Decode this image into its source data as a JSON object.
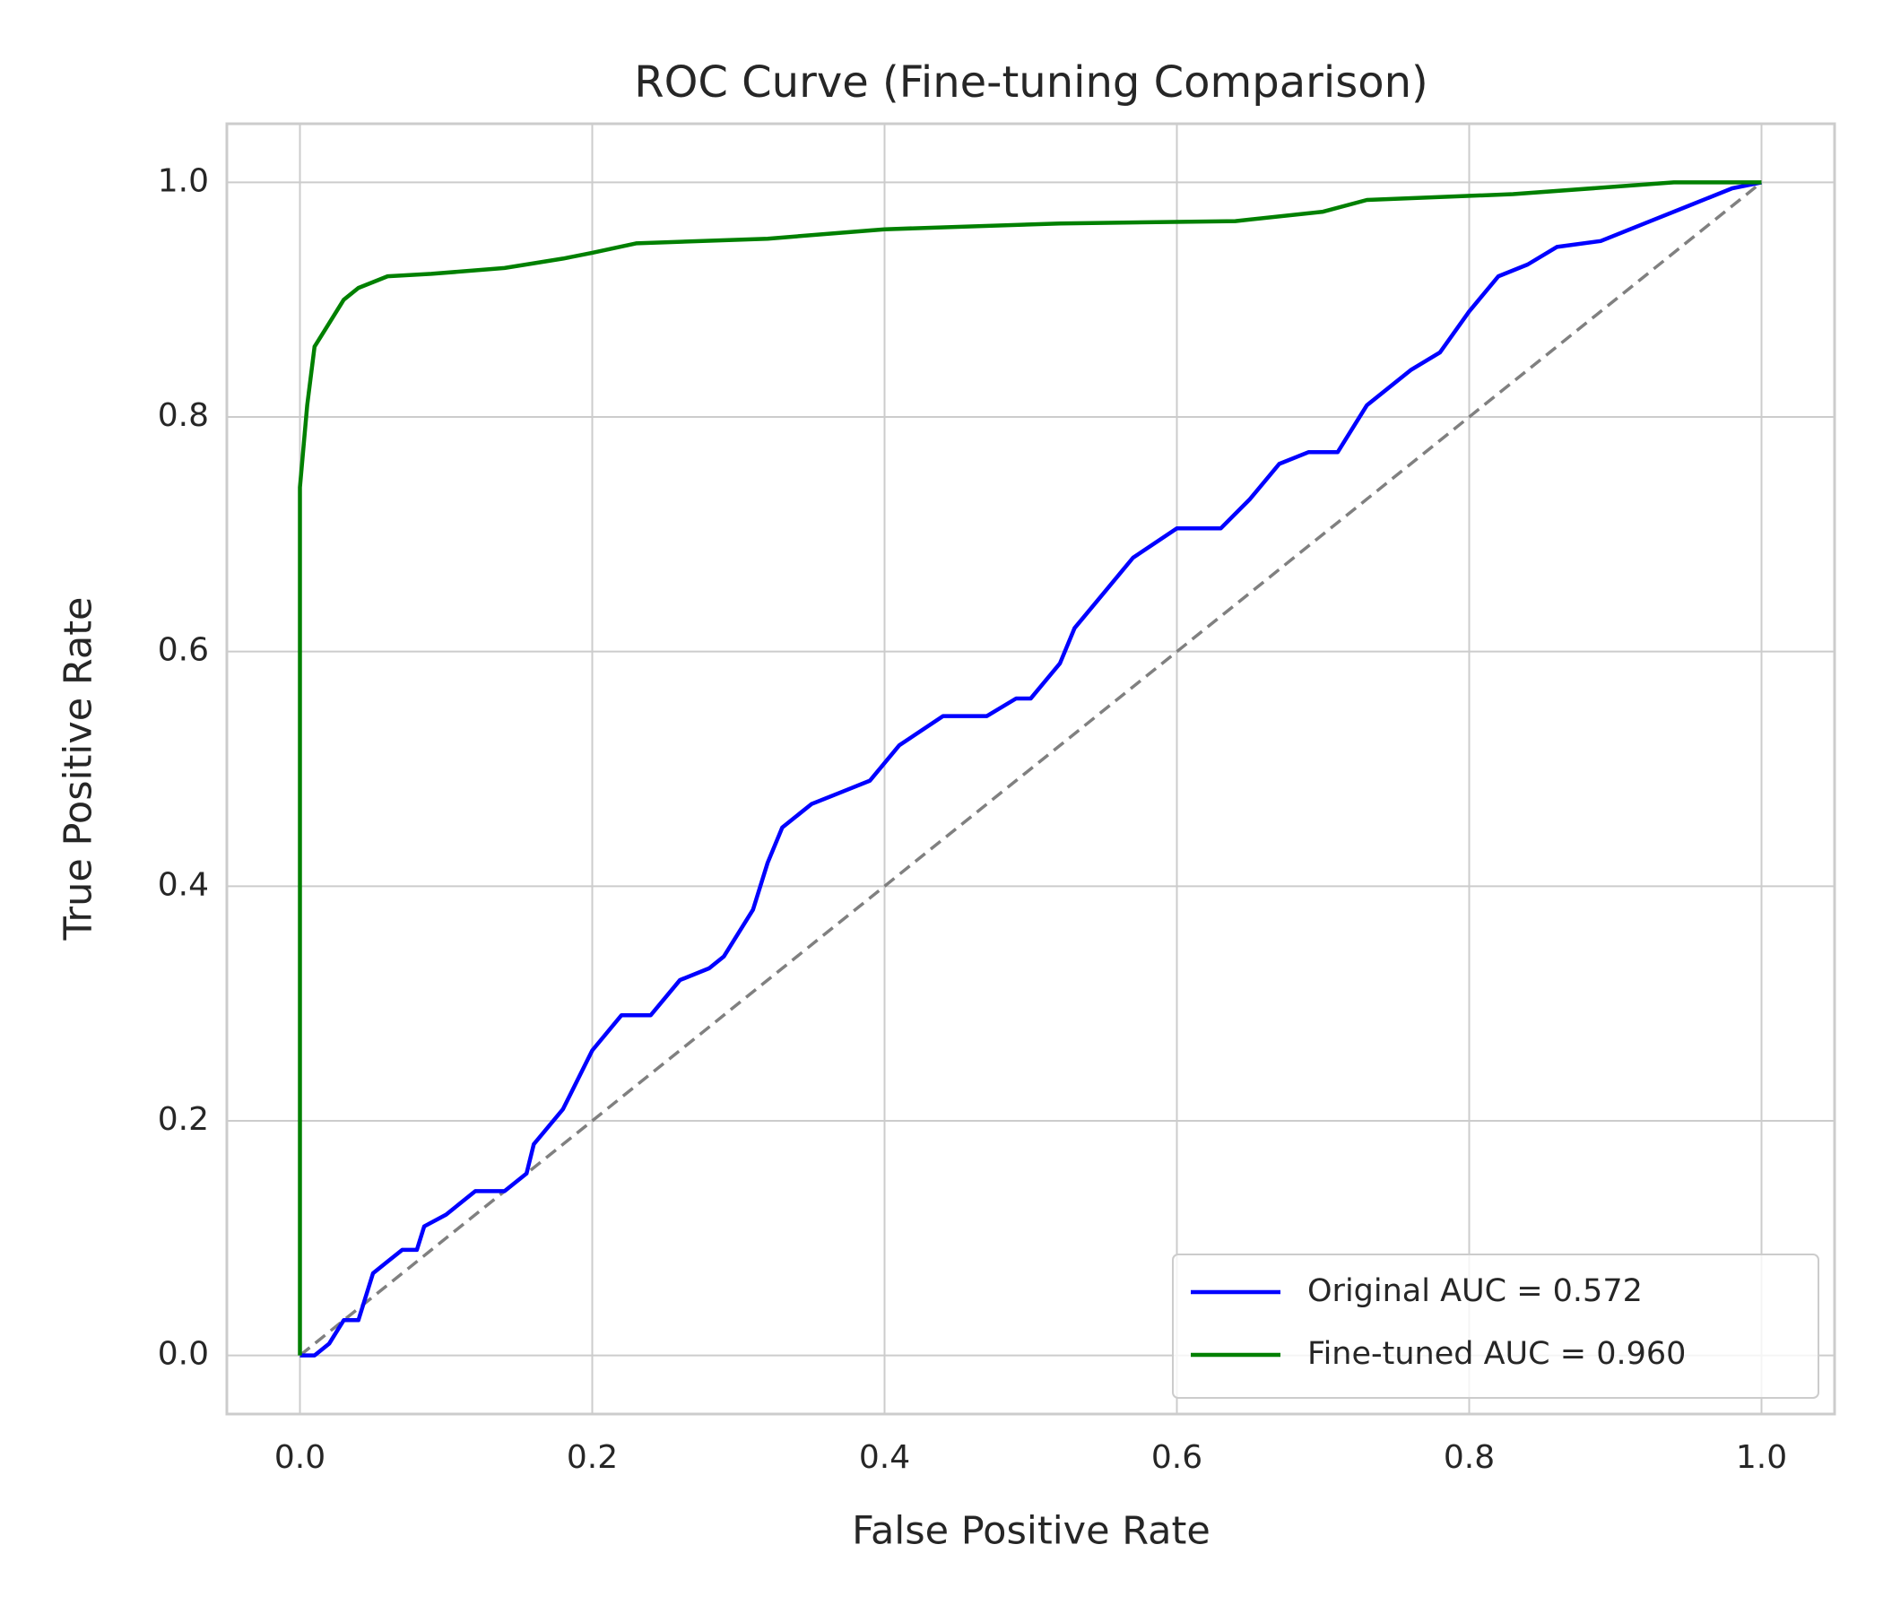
{
  "chart_data": {
    "type": "line",
    "title": "ROC Curve (Fine-tuning Comparison)",
    "x_label": "False Positive Rate",
    "y_label": "True Positive Rate",
    "xlim": [
      -0.05,
      1.05
    ],
    "ylim": [
      -0.05,
      1.05
    ],
    "xticks": [
      {
        "value": 0,
        "label": "0.0"
      },
      0.2,
      0.4,
      0.6,
      0.8,
      {
        "value": 1,
        "label": "1.0"
      }
    ],
    "yticks": [
      {
        "value": 0,
        "label": "0.0"
      },
      0.2,
      0.4,
      0.6,
      0.8,
      {
        "value": 1,
        "label": "1.0"
      }
    ],
    "grid": true,
    "legend": "lower right",
    "series": [
      {
        "name": "Original AUC = 0.572",
        "color": "#0000ff",
        "x": [
          0,
          0.01,
          0.02,
          0.03,
          0.04,
          0.05,
          0.06,
          0.07,
          0.08,
          0.085,
          0.1,
          0.12,
          0.14,
          0.155,
          0.16,
          0.18,
          0.2,
          0.22,
          0.24,
          0.26,
          0.28,
          0.29,
          0.31,
          0.32,
          0.33,
          0.35,
          0.37,
          0.39,
          0.41,
          0.44,
          0.47,
          0.49,
          0.5,
          0.52,
          0.53,
          0.55,
          0.57,
          0.6,
          0.63,
          0.65,
          0.67,
          0.69,
          0.71,
          0.73,
          0.76,
          0.78,
          0.8,
          0.82,
          0.84,
          0.86,
          0.89,
          0.92,
          0.95,
          0.98,
          1
        ],
        "values": [
          0,
          0,
          0.01,
          0.03,
          0.03,
          0.07,
          0.08,
          0.09,
          0.09,
          0.11,
          0.12,
          0.14,
          0.14,
          0.155,
          0.18,
          0.21,
          0.26,
          0.29,
          0.29,
          0.32,
          0.33,
          0.34,
          0.38,
          0.42,
          0.45,
          0.47,
          0.48,
          0.49,
          0.52,
          0.545,
          0.545,
          0.56,
          0.56,
          0.59,
          0.62,
          0.65,
          0.68,
          0.705,
          0.705,
          0.73,
          0.76,
          0.77,
          0.77,
          0.81,
          0.84,
          0.855,
          0.89,
          0.92,
          0.93,
          0.945,
          0.95,
          0.965,
          0.98,
          0.995,
          1
        ]
      },
      {
        "name": "Fine-tuned AUC = 0.960",
        "color": "#008000",
        "x": [
          0,
          0,
          0.005,
          0.01,
          0.02,
          0.03,
          0.04,
          0.06,
          0.09,
          0.14,
          0.18,
          0.2,
          0.23,
          0.32,
          0.4,
          0.52,
          0.64,
          0.7,
          0.73,
          0.83,
          0.94,
          1
        ],
        "values": [
          0,
          0.74,
          0.81,
          0.86,
          0.88,
          0.9,
          0.91,
          0.92,
          0.922,
          0.927,
          0.935,
          0.94,
          0.948,
          0.952,
          0.96,
          0.965,
          0.967,
          0.975,
          0.985,
          0.99,
          1,
          1
        ]
      }
    ],
    "reference_line": {
      "color": "#808080",
      "x": [
        0,
        1
      ],
      "values": [
        0,
        1
      ]
    }
  }
}
